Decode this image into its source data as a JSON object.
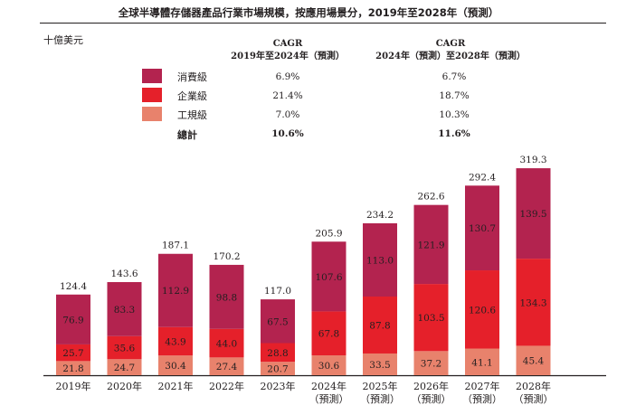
{
  "title": "全球半導體存儲器產品行業市場規模，按應用場景分，2019年至2028年（預測）",
  "unit_label": "十億美元",
  "cagr_table": {
    "headers": [
      {
        "line1": "CAGR",
        "line2": "2019年至2024年（預測）"
      },
      {
        "line1": "CAGR",
        "line2": "2024年（預測）至2028年（預測）"
      }
    ],
    "rows": [
      {
        "label": "消費級",
        "color": "#b3234f",
        "v1": "6.9%",
        "v2": "6.7%"
      },
      {
        "label": "企業級",
        "color": "#e5202a",
        "v1": "21.4%",
        "v2": "18.7%"
      },
      {
        "label": "工規級",
        "color": "#e8826c",
        "v1": "7.0%",
        "v2": "10.3%"
      }
    ],
    "total": {
      "label": "總計",
      "v1": "10.6%",
      "v2": "11.6%"
    }
  },
  "chart_data": {
    "type": "bar",
    "stacked": true,
    "categories": [
      [
        "2019年"
      ],
      [
        "2020年"
      ],
      [
        "2021年"
      ],
      [
        "2022年"
      ],
      [
        "2023年"
      ],
      [
        "2024年",
        "（預測）"
      ],
      [
        "2025年",
        "（預測）"
      ],
      [
        "2026年",
        "（預測）"
      ],
      [
        "2027年",
        "（預測）"
      ],
      [
        "2028年",
        "（預測）"
      ]
    ],
    "series": [
      {
        "name": "工規級",
        "color": "#e8826c",
        "values": [
          21.8,
          24.7,
          30.4,
          27.4,
          20.7,
          30.6,
          33.5,
          37.2,
          41.1,
          45.4
        ]
      },
      {
        "name": "企業級",
        "color": "#e5202a",
        "values": [
          25.7,
          35.6,
          43.9,
          44.0,
          28.8,
          67.8,
          87.8,
          103.5,
          120.6,
          134.3
        ]
      },
      {
        "name": "消費級",
        "color": "#b3234f",
        "values": [
          76.9,
          83.3,
          112.9,
          98.8,
          67.5,
          107.6,
          113.0,
          121.9,
          130.7,
          139.5
        ]
      }
    ],
    "totals": [
      124.4,
      143.6,
      187.1,
      170.2,
      117.0,
      205.9,
      234.2,
      262.6,
      292.4,
      319.3
    ],
    "ylim": [
      0,
      319.3
    ],
    "grid": false,
    "xlabel": "",
    "ylabel": "十億美元"
  }
}
